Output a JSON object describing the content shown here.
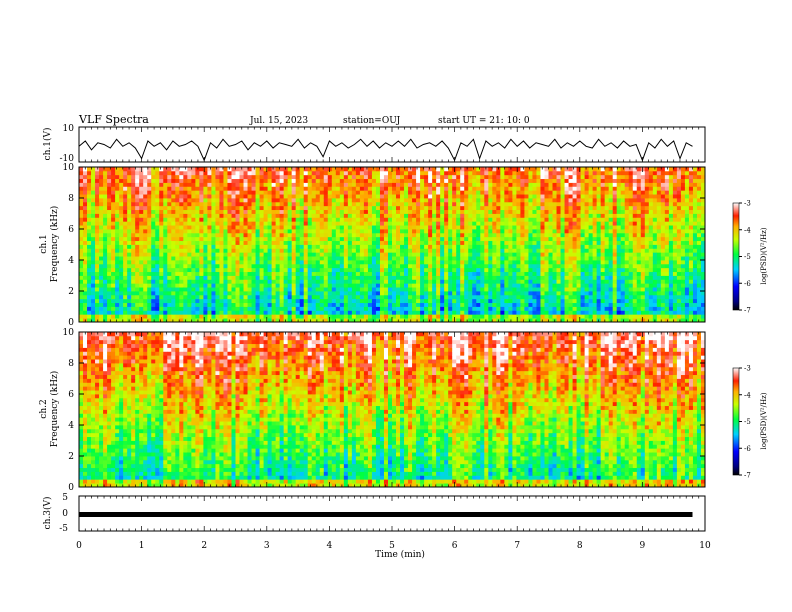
{
  "header": {
    "title": "VLF Spectra",
    "date": "Jul. 15, 2023",
    "station": "station=OUJ",
    "start": "start UT =  21: 10: 0"
  },
  "chart_data": [
    {
      "type": "line",
      "panel": "ch1-waveform",
      "ylabel": "ch.1(V)",
      "yticks": [
        "10",
        "-10"
      ],
      "ylim": [
        -10,
        10
      ],
      "x": [
        0,
        0.1,
        0.2,
        0.3,
        0.4,
        0.5,
        0.6,
        0.7,
        0.8,
        0.9,
        1.0,
        1.1,
        1.2,
        1.3,
        1.4,
        1.5,
        1.6,
        1.7,
        1.8,
        1.9,
        2.0,
        2.1,
        2.2,
        2.3,
        2.4,
        2.5,
        2.6,
        2.7,
        2.8,
        2.9,
        3.0,
        3.1,
        3.2,
        3.3,
        3.4,
        3.5,
        3.6,
        3.7,
        3.8,
        3.9,
        4.0,
        4.1,
        4.2,
        4.3,
        4.4,
        4.5,
        4.6,
        4.7,
        4.8,
        4.9,
        5.0,
        5.1,
        5.2,
        5.3,
        5.4,
        5.5,
        5.6,
        5.7,
        5.8,
        5.9,
        6.0,
        6.1,
        6.2,
        6.3,
        6.4,
        6.5,
        6.6,
        6.7,
        6.8,
        6.9,
        7.0,
        7.1,
        7.2,
        7.3,
        7.4,
        7.5,
        7.6,
        7.7,
        7.8,
        7.9,
        8.0,
        8.1,
        8.2,
        8.3,
        8.4,
        8.5,
        8.6,
        8.7,
        8.8,
        8.9,
        9.0,
        9.1,
        9.2,
        9.3,
        9.4,
        9.5,
        9.6,
        9.7,
        9.8
      ],
      "values": [
        -1,
        2,
        -3,
        1,
        0,
        -2,
        3,
        -1,
        1,
        -2,
        -8,
        2,
        -1,
        1,
        -3,
        2,
        -1,
        0,
        2,
        -1,
        -9,
        1,
        -2,
        3,
        -1,
        0,
        2,
        -3,
        1,
        -1,
        2,
        -2,
        1,
        0,
        -1,
        3,
        -2,
        1,
        -1,
        -7,
        2,
        -1,
        1,
        -2,
        0,
        3,
        -1,
        2,
        -2,
        1,
        -1,
        2,
        -1,
        3,
        -2,
        0,
        1,
        -1,
        2,
        -2,
        -9,
        1,
        -1,
        3,
        -8,
        2,
        -1,
        1,
        -2,
        3,
        -1,
        2,
        -2,
        1,
        0,
        -1,
        3,
        -2,
        1,
        -1,
        2,
        -1,
        -2,
        3,
        -1,
        1,
        -2,
        2,
        -1,
        0,
        -9,
        1,
        -2,
        3,
        -1,
        2,
        -8,
        1,
        -1
      ]
    },
    {
      "type": "heatmap",
      "panel": "ch1-spectrogram",
      "ylabel": "ch.1",
      "ylabel2": "Frequency (kHz)",
      "ylim": [
        0,
        10
      ],
      "yticks": [
        "0",
        "2",
        "4",
        "6",
        "8",
        "10"
      ],
      "colorbar_label": "log(PSD)(V²/Hz)",
      "colorbar_range": [
        -7,
        -3
      ],
      "colorbar_ticks": [
        "-3",
        "-4",
        "-5",
        "-6",
        "-7"
      ]
    },
    {
      "type": "heatmap",
      "panel": "ch2-spectrogram",
      "ylabel": "ch.2",
      "ylabel2": "Frequency (kHz)",
      "ylim": [
        0,
        10
      ],
      "yticks": [
        "0",
        "2",
        "4",
        "6",
        "8",
        "10"
      ],
      "colorbar_label": "log(PSD)(V²/Hz)",
      "colorbar_range": [
        -7,
        -3
      ],
      "colorbar_ticks": [
        "-3",
        "-4",
        "-5",
        "-6",
        "-7"
      ]
    },
    {
      "type": "line",
      "panel": "ch3-waveform",
      "ylabel": "ch.3(V)",
      "yticks": [
        "5",
        "0",
        "-5"
      ],
      "ylim": [
        -5,
        5
      ],
      "x": [
        0,
        9.8
      ],
      "values": [
        -0.3,
        -0.3
      ]
    }
  ],
  "x_axis": {
    "label": "Time (min)",
    "xlim": [
      0,
      10
    ],
    "ticks": [
      "0",
      "1",
      "2",
      "3",
      "4",
      "5",
      "6",
      "7",
      "8",
      "9",
      "10"
    ]
  }
}
